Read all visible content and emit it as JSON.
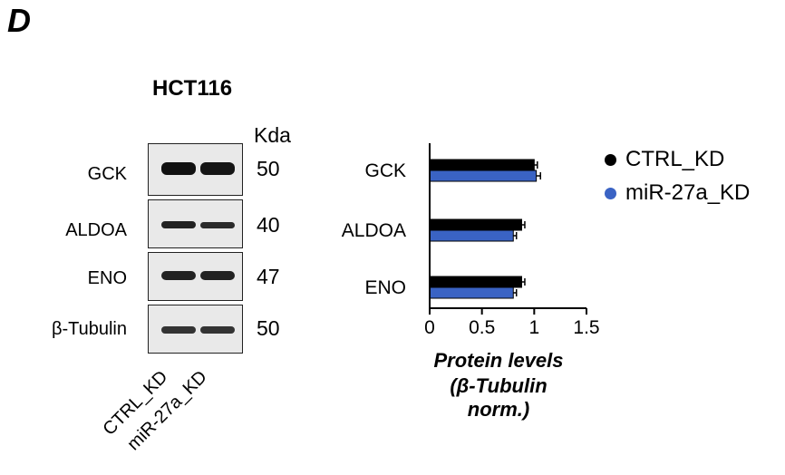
{
  "panel_letter": "D",
  "blot": {
    "cell_line": "HCT116",
    "kda_header": "Kda",
    "rows": [
      {
        "label": "GCK",
        "kda": "50"
      },
      {
        "label": "ALDOA",
        "kda": "40"
      },
      {
        "label": "ENO",
        "kda": "47"
      },
      {
        "label": "β-Tubulin",
        "kda": "50"
      }
    ],
    "lanes": [
      "CTRL_KD",
      "miR-27a_KD"
    ]
  },
  "chart_data": {
    "type": "bar",
    "orientation": "horizontal",
    "categories": [
      "GCK",
      "ALDOA",
      "ENO"
    ],
    "series": [
      {
        "name": "CTRL_KD",
        "color": "#000000",
        "values": [
          1.0,
          0.88,
          0.88
        ],
        "errors": [
          0.03,
          0.03,
          0.03
        ]
      },
      {
        "name": "miR-27a_KD",
        "color": "#3a63c4",
        "values": [
          1.02,
          0.8,
          0.8
        ],
        "errors": [
          0.04,
          0.03,
          0.03
        ]
      }
    ],
    "xlim": [
      0,
      1.5
    ],
    "xticks": [
      "0",
      "0.5",
      "1",
      "1.5"
    ],
    "xlabel_line1": "Protein levels",
    "xlabel_line2": "(β-Tubulin norm.)",
    "legend_position": "top-right"
  }
}
